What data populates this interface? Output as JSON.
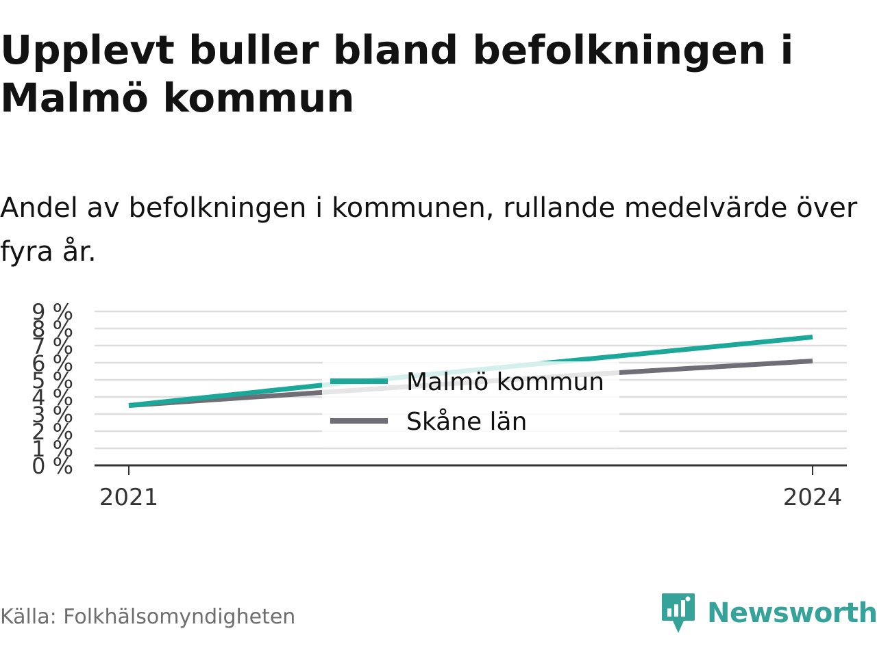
{
  "title": "Upplevt buller bland befolkningen i Malmö kommun",
  "subtitle": "Andel av befolkningen i kommunen, rullande medelvärde över fyra år.",
  "source": "Källa: Folkhälsomyndigheten",
  "brand": {
    "name": "Newsworthy",
    "icon": "newsworthy-logo-icon",
    "color": "#35a39a"
  },
  "colors": {
    "malmo": "#1ba89b",
    "skane": "#6f6e76",
    "grid": "#dddddd",
    "axis": "#333333"
  },
  "chart_data": {
    "type": "line",
    "x": [
      "2021",
      "2022",
      "2023",
      "2024"
    ],
    "x_tick_labels": [
      "2021",
      "2024"
    ],
    "ylim": [
      0,
      9
    ],
    "y_ticks": [
      0,
      1,
      2,
      3,
      4,
      5,
      6,
      7,
      8,
      9
    ],
    "y_tick_labels": [
      "0 %",
      "1 %",
      "2 %",
      "3 %",
      "4 %",
      "5 %",
      "6 %",
      "7 %",
      "8 %",
      "9 %"
    ],
    "grid": true,
    "legend_position": "center",
    "series": [
      {
        "name": "Malmö kommun",
        "values": [
          3.5,
          4.9,
          6.2,
          7.5
        ],
        "color": "#1ba89b"
      },
      {
        "name": "Skåne län",
        "values": [
          3.5,
          4.4,
          5.3,
          6.1
        ],
        "color": "#6f6e76"
      }
    ]
  }
}
